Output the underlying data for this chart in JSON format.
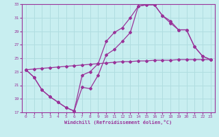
{
  "xlabel": "Windchill (Refroidissement éolien,°C)",
  "bg_color": "#c8eef0",
  "grid_color": "#b0dde0",
  "line_color": "#993399",
  "xlim": [
    -0.5,
    23.5
  ],
  "ylim": [
    17,
    33
  ],
  "xticks": [
    0,
    1,
    2,
    3,
    4,
    5,
    6,
    7,
    8,
    9,
    10,
    11,
    12,
    13,
    14,
    15,
    16,
    17,
    18,
    19,
    20,
    21,
    22,
    23
  ],
  "yticks": [
    17,
    19,
    21,
    23,
    25,
    27,
    29,
    31,
    33
  ],
  "line1_x": [
    0,
    1,
    2,
    3,
    4,
    5,
    6,
    7,
    8,
    9,
    10,
    11,
    12,
    13,
    14,
    15,
    16,
    17,
    18,
    19,
    20,
    21,
    22,
    23
  ],
  "line1_y": [
    23.3,
    23.4,
    23.5,
    23.6,
    23.7,
    23.8,
    23.9,
    24.0,
    24.1,
    24.2,
    24.3,
    24.4,
    24.5,
    24.5,
    24.6,
    24.6,
    24.7,
    24.7,
    24.7,
    24.8,
    24.8,
    24.8,
    24.8,
    24.8
  ],
  "line2_x": [
    0,
    1,
    2,
    3,
    4,
    5,
    6,
    7,
    8,
    9,
    10,
    11,
    12,
    13,
    14,
    15,
    16,
    17,
    18,
    19,
    20,
    21,
    22,
    23
  ],
  "line2_y": [
    23.3,
    22.2,
    20.3,
    19.3,
    18.5,
    17.7,
    17.2,
    20.7,
    20.5,
    22.5,
    25.5,
    26.3,
    27.5,
    28.8,
    32.7,
    32.9,
    32.9,
    31.3,
    30.2,
    29.2,
    29.2,
    26.7,
    25.3,
    24.8
  ],
  "line3_x": [
    0,
    1,
    2,
    3,
    4,
    5,
    6,
    7,
    8,
    9,
    10,
    11,
    12,
    13,
    14,
    15,
    16,
    17,
    18,
    19,
    20,
    21,
    22,
    23
  ],
  "line3_y": [
    23.3,
    22.2,
    20.3,
    19.3,
    18.5,
    17.7,
    17.2,
    22.5,
    23.0,
    24.2,
    27.5,
    28.8,
    29.5,
    31.0,
    32.7,
    32.9,
    32.9,
    31.3,
    30.5,
    29.2,
    29.2,
    26.7,
    25.3,
    24.8
  ]
}
